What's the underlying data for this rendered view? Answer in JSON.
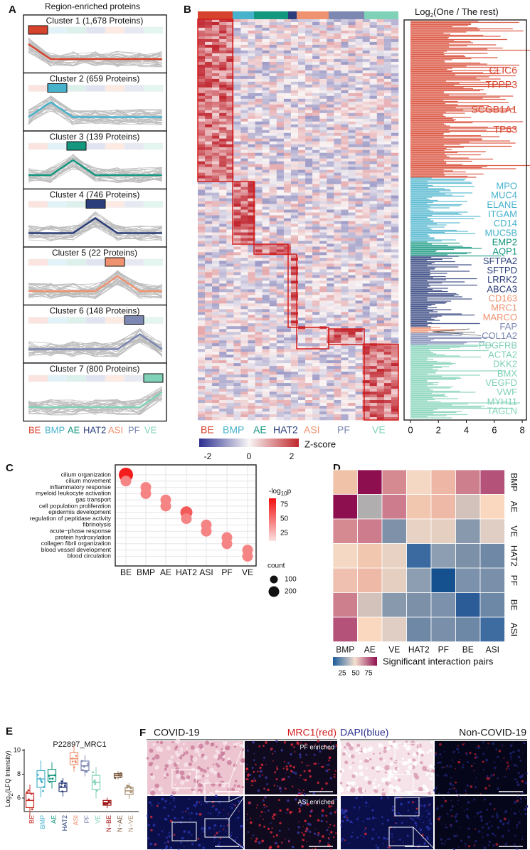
{
  "panel_labels": [
    "A",
    "B",
    "C",
    "D",
    "E",
    "F"
  ],
  "a": {
    "title": "Region-enriched proteins",
    "clusters": [
      "Cluster 1 (1,678 Proteins)",
      "Cluster 2 (659 Proteins)",
      "Cluster 3 (139 Proteins)",
      "Cluster 4 (746 Proteins)",
      "Cluster 5 (22 Proteins)",
      "Cluster 6 (148 Proteins)",
      "Cluster 7 (800 Proteins)"
    ],
    "regions": [
      "BE",
      "BMP",
      "AE",
      "HAT2",
      "ASI",
      "PF",
      "VE"
    ]
  },
  "b": {
    "regions": [
      "BE",
      "BMP",
      "AE",
      "HAT2",
      "ASI",
      "PF",
      "VE"
    ],
    "colorbar_ticks": [
      "-2",
      "0",
      "2"
    ],
    "colorbar_label": "Z-score",
    "bar_title_prefix": "Log",
    "bar_title_sub": "2",
    "bar_title_rest": "(One / The rest)",
    "bar_ticks": [
      "0",
      "2",
      "4",
      "6",
      "8"
    ],
    "genes_be": [
      "CLIC6",
      "TPPP3",
      "SCGB1A1",
      "TP63"
    ],
    "genes": [
      "MPO",
      "MUC4",
      "ELANE",
      "ITGAM",
      "CD14",
      "MUC5B",
      "EMP2",
      "AQP1",
      "SFTPA2",
      "SFTPD",
      "LRRK2",
      "ABCA3",
      "CD163",
      "MRC1",
      "MARCO",
      "FAP",
      "COL1A2",
      "PDGFRB",
      "ACTA2",
      "DKK2",
      "BMX",
      "VEGFD",
      "VWF",
      "MYH11",
      "TAGLN"
    ]
  },
  "c": {
    "terms": [
      "cilium organization",
      "cilium movement",
      "inflammatory response",
      "myeloid leukocyte activation",
      "gas transport",
      "cell population proliferation",
      "epidermis development",
      "regulation of peptidase activity",
      "fibrinolysis",
      "acute−phase response",
      "protein hydroxylation",
      "collagen fibril organization",
      "blood vessel development",
      "blood circulation"
    ],
    "regions": [
      "BE",
      "BMP",
      "AE",
      "HAT2",
      "ASI",
      "PF",
      "VE"
    ],
    "color_title_prefix": "-log",
    "color_title_sub": "10",
    "color_title_rest": "p",
    "color_ticks": [
      "75",
      "50",
      "25"
    ],
    "size_title": "count",
    "size_ticks": [
      "100",
      "200"
    ]
  },
  "d": {
    "rows": [
      "BMP",
      "AE",
      "VE",
      "HAT2",
      "PF",
      "BE",
      "ASI"
    ],
    "cols": [
      "BMP",
      "AE",
      "VE",
      "HAT2",
      "PF",
      "BE",
      "ASI"
    ],
    "colorbar_ticks": [
      "25",
      "50",
      "75"
    ],
    "colorbar_label": "Significant interaction pairs"
  },
  "e": {
    "title": "P22897_MRC1",
    "y_label_prefix": "Log",
    "y_label_sub": "2",
    "y_label_rest": "(LFQ Intensity)",
    "yticks": [
      "6",
      "8",
      "10"
    ],
    "groups": [
      "BE",
      "BMP",
      "AE",
      "HAT2",
      "ASI",
      "PF",
      "VE",
      "N−BE",
      "N−AE",
      "N−VE"
    ],
    "medians": [
      5.8,
      7.6,
      7.9,
      6.9,
      9.3,
      8.7,
      7.3,
      5.6,
      7.9,
      6.6
    ]
  },
  "f": {
    "left": "COVID-19",
    "stain_red": "MRC1(red)",
    "stain_blue": "DAPI(blue)",
    "right": "Non-COVID-19",
    "inset_top": "PF enriched",
    "inset_bottom": "ASI enriched"
  }
}
